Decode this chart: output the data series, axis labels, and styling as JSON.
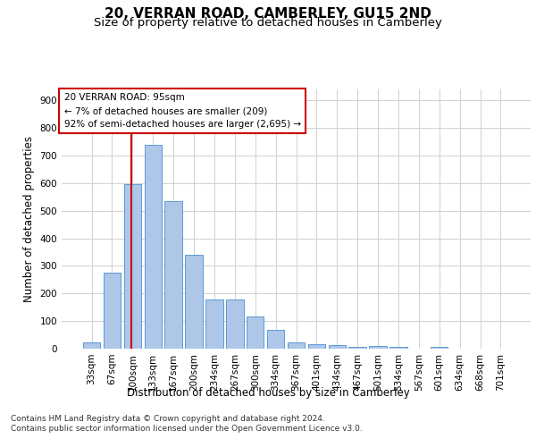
{
  "title": "20, VERRAN ROAD, CAMBERLEY, GU15 2ND",
  "subtitle": "Size of property relative to detached houses in Camberley",
  "xlabel": "Distribution of detached houses by size in Camberley",
  "ylabel": "Number of detached properties",
  "categories": [
    "33sqm",
    "67sqm",
    "100sqm",
    "133sqm",
    "167sqm",
    "200sqm",
    "234sqm",
    "267sqm",
    "300sqm",
    "334sqm",
    "367sqm",
    "401sqm",
    "434sqm",
    "467sqm",
    "501sqm",
    "534sqm",
    "567sqm",
    "601sqm",
    "634sqm",
    "668sqm",
    "701sqm"
  ],
  "bar_values": [
    22,
    275,
    597,
    740,
    535,
    340,
    178,
    178,
    118,
    68,
    22,
    15,
    12,
    8,
    10,
    8,
    0,
    8,
    0,
    0,
    0
  ],
  "bar_color": "#aec6e8",
  "bar_edge_color": "#5b9bd5",
  "grid_color": "#d0d0d0",
  "background_color": "#ffffff",
  "annotation_line1": "20 VERRAN ROAD: 95sqm",
  "annotation_line2": "← 7% of detached houses are smaller (209)",
  "annotation_line3": "92% of semi-detached houses are larger (2,695) →",
  "annotation_box_color": "#ffffff",
  "annotation_box_edge_color": "#cc0000",
  "vline_color": "#cc0000",
  "vline_position": 2.45,
  "ylim": [
    0,
    940
  ],
  "yticks": [
    0,
    100,
    200,
    300,
    400,
    500,
    600,
    700,
    800,
    900
  ],
  "footer_line1": "Contains HM Land Registry data © Crown copyright and database right 2024.",
  "footer_line2": "Contains public sector information licensed under the Open Government Licence v3.0.",
  "title_fontsize": 11,
  "subtitle_fontsize": 9.5,
  "label_fontsize": 8.5,
  "tick_fontsize": 7.5,
  "annotation_fontsize": 7.5,
  "footer_fontsize": 6.5
}
